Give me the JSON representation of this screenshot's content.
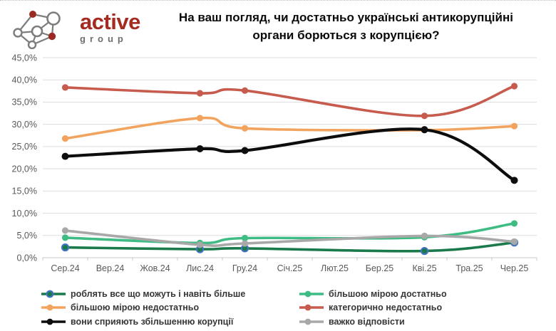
{
  "header": {
    "brand": {
      "name": "active",
      "sub": "group"
    },
    "title_lines": [
      "На ваш погляд, чи достатньо українські антикорупційні",
      "органи борються з корупцією?"
    ]
  },
  "chart_data": {
    "type": "line",
    "title": "На ваш погляд, чи достатньо українські антикорупційні органи борються з корупцією?",
    "categories": [
      "Сер.24",
      "Вер.24",
      "Жов.24",
      "Лис.24",
      "Гру.24",
      "Січ.25",
      "Лют.25",
      "Бер.25",
      "Кві.25",
      "Тра.25",
      "Чер.25"
    ],
    "surveyed_category_indices": [
      0,
      3,
      4,
      8,
      10
    ],
    "series": [
      {
        "name": "роблять все що можуть і навіть більше",
        "color": "#1b7a4c",
        "marker_ring": "#4472c4",
        "values": [
          2.3,
          1.9,
          2.1,
          1.5,
          3.4
        ]
      },
      {
        "name": "більшою мірою достатньо",
        "color": "#3fbc83",
        "values": [
          4.5,
          3.3,
          4.4,
          4.6,
          7.7
        ]
      },
      {
        "name": "більшою мірою недостатньо",
        "color": "#f2a35e",
        "values": [
          26.8,
          31.4,
          29.1,
          28.7,
          29.6
        ]
      },
      {
        "name": "категорично недостатньо",
        "color": "#c75b4e",
        "values": [
          38.3,
          37.0,
          37.6,
          31.9,
          38.6
        ]
      },
      {
        "name": "вони сприяють збільшенню корупції",
        "color": "#0d0d0d",
        "values": [
          22.8,
          24.5,
          24.1,
          28.8,
          17.4
        ]
      },
      {
        "name": "важко відповісти",
        "color": "#a8a8a8",
        "values": [
          6.1,
          2.9,
          3.2,
          4.9,
          3.6
        ]
      }
    ],
    "ylim": [
      0,
      45
    ],
    "ytick_step": 5,
    "y_ticks": [
      "0,0%",
      "5,0%",
      "10,0%",
      "15,0%",
      "20,0%",
      "25,0%",
      "30,0%",
      "35,0%",
      "40,0%",
      "45,0%"
    ],
    "grid": true,
    "smooth": true,
    "legend_position": "bottom",
    "legend_column_order": [
      [
        0,
        2,
        4
      ],
      [
        1,
        3,
        5
      ]
    ],
    "axis_label_color": "#595959",
    "grid_color": "#dedede",
    "axis_line_color": "#c8c8c8"
  }
}
